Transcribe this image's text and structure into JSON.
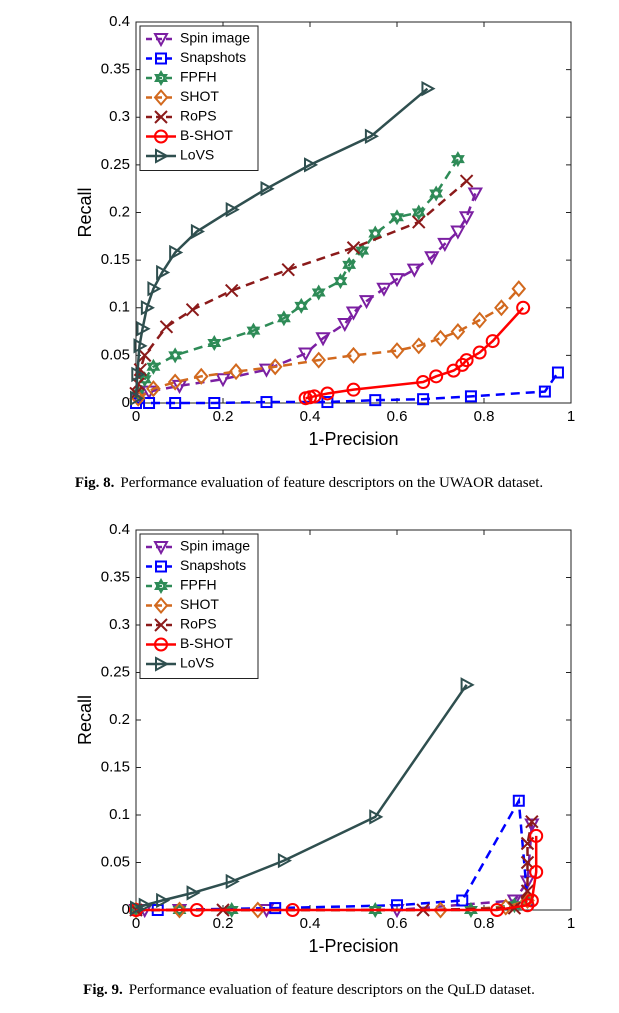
{
  "chart_data": [
    {
      "type": "line",
      "xlabel": "1-Precision",
      "ylabel": "Recall",
      "xlim": [
        0,
        1
      ],
      "ylim": [
        0,
        0.4
      ],
      "xticks": [
        0,
        0.2,
        0.4,
        0.6,
        0.8,
        1
      ],
      "yticks": [
        0,
        0.05,
        0.1,
        0.15,
        0.2,
        0.25,
        0.3,
        0.35,
        0.4
      ],
      "legend": "upper-left",
      "caption_label": "Fig. 8.",
      "caption": "Performance evaluation of feature descriptors on the UWAOR dataset.",
      "series": [
        {
          "name": "Spin image",
          "color": "#7b1fa2",
          "marker": "triangle-down",
          "dashed": true,
          "x": [
            0.005,
            0.03,
            0.1,
            0.2,
            0.3,
            0.39,
            0.43,
            0.48,
            0.5,
            0.53,
            0.57,
            0.6,
            0.64,
            0.68,
            0.71,
            0.74,
            0.76,
            0.78
          ],
          "values": [
            0.005,
            0.012,
            0.018,
            0.025,
            0.035,
            0.052,
            0.068,
            0.083,
            0.095,
            0.107,
            0.12,
            0.13,
            0.14,
            0.153,
            0.167,
            0.18,
            0.195,
            0.22
          ]
        },
        {
          "name": "Snapshots",
          "color": "#0000ff",
          "marker": "square",
          "dashed": true,
          "x": [
            0,
            0.03,
            0.09,
            0.18,
            0.3,
            0.44,
            0.55,
            0.66,
            0.77,
            0.94,
            0.97
          ],
          "values": [
            0,
            0,
            0,
            0,
            0.001,
            0.001,
            0.003,
            0.004,
            0.007,
            0.012,
            0.032
          ]
        },
        {
          "name": "FPFH",
          "color": "#2e8b57",
          "marker": "hexagram",
          "dashed": true,
          "x": [
            0.005,
            0.02,
            0.04,
            0.09,
            0.18,
            0.27,
            0.34,
            0.38,
            0.42,
            0.47,
            0.49,
            0.52,
            0.55,
            0.6,
            0.65,
            0.69,
            0.74
          ],
          "values": [
            0.01,
            0.025,
            0.038,
            0.05,
            0.063,
            0.076,
            0.089,
            0.102,
            0.116,
            0.128,
            0.145,
            0.16,
            0.178,
            0.195,
            0.2,
            0.22,
            0.256
          ]
        },
        {
          "name": "SHOT",
          "color": "#d2691e",
          "marker": "diamond",
          "dashed": true,
          "x": [
            0.005,
            0.04,
            0.09,
            0.15,
            0.23,
            0.32,
            0.42,
            0.5,
            0.6,
            0.65,
            0.7,
            0.74,
            0.79,
            0.84,
            0.88
          ],
          "values": [
            0.005,
            0.015,
            0.022,
            0.028,
            0.033,
            0.038,
            0.045,
            0.05,
            0.055,
            0.06,
            0.068,
            0.075,
            0.087,
            0.1,
            0.12
          ]
        },
        {
          "name": "RoPS",
          "color": "#8b1a1a",
          "marker": "x",
          "dashed": true,
          "x": [
            0,
            0.005,
            0.01,
            0.02,
            0.07,
            0.13,
            0.22,
            0.35,
            0.5,
            0.65,
            0.76
          ],
          "values": [
            0.01,
            0.02,
            0.035,
            0.05,
            0.08,
            0.098,
            0.118,
            0.14,
            0.163,
            0.19,
            0.233
          ]
        },
        {
          "name": "B-SHOT",
          "color": "#ff0000",
          "marker": "circle",
          "dashed": false,
          "x": [
            0.39,
            0.4,
            0.41,
            0.44,
            0.5,
            0.66,
            0.69,
            0.73,
            0.75,
            0.76,
            0.79,
            0.82,
            0.89
          ],
          "values": [
            0.005,
            0.006,
            0.007,
            0.01,
            0.014,
            0.022,
            0.028,
            0.034,
            0.04,
            0.045,
            0.053,
            0.065,
            0.1
          ]
        },
        {
          "name": "LoVS",
          "color": "#2f4f4f",
          "marker": "triangle-right",
          "dashed": false,
          "x": [
            0,
            0.003,
            0.008,
            0.015,
            0.025,
            0.04,
            0.06,
            0.09,
            0.14,
            0.22,
            0.3,
            0.4,
            0.54,
            0.67
          ],
          "values": [
            0.005,
            0.03,
            0.06,
            0.078,
            0.1,
            0.12,
            0.137,
            0.158,
            0.18,
            0.203,
            0.225,
            0.25,
            0.28,
            0.33
          ]
        }
      ]
    },
    {
      "type": "line",
      "xlabel": "1-Precision",
      "ylabel": "Recall",
      "xlim": [
        0,
        1
      ],
      "ylim": [
        0,
        0.4
      ],
      "xticks": [
        0,
        0.2,
        0.4,
        0.6,
        0.8,
        1
      ],
      "yticks": [
        0,
        0.05,
        0.1,
        0.15,
        0.2,
        0.25,
        0.3,
        0.35,
        0.4
      ],
      "legend": "upper-left",
      "caption_label": "Fig. 9.",
      "caption": "Performance evaluation of feature descriptors on the QuLD dataset.",
      "series": [
        {
          "name": "Spin image",
          "color": "#7b1fa2",
          "marker": "triangle-down",
          "dashed": true,
          "x": [
            0,
            0.02,
            0.1,
            0.3,
            0.6,
            0.87,
            0.9,
            0.91
          ],
          "values": [
            0,
            0,
            0,
            0,
            0,
            0.01,
            0.03,
            0.09
          ]
        },
        {
          "name": "Snapshots",
          "color": "#0000ff",
          "marker": "square",
          "dashed": true,
          "x": [
            0,
            0.05,
            0.32,
            0.6,
            0.75,
            0.88,
            0.9
          ],
          "values": [
            0,
            0,
            0.002,
            0.005,
            0.01,
            0.115,
            0.01
          ]
        },
        {
          "name": "FPFH",
          "color": "#2e8b57",
          "marker": "hexagram",
          "dashed": true,
          "x": [
            0,
            0.1,
            0.22,
            0.55,
            0.77,
            0.87,
            0.9
          ],
          "values": [
            0,
            0,
            0,
            0,
            0,
            0.005,
            0.01
          ]
        },
        {
          "name": "SHOT",
          "color": "#d2691e",
          "marker": "diamond",
          "dashed": true,
          "x": [
            0,
            0.1,
            0.28,
            0.7,
            0.85,
            0.9
          ],
          "values": [
            0,
            0,
            0,
            0,
            0.003,
            0.01
          ]
        },
        {
          "name": "RoPS",
          "color": "#8b1a1a",
          "marker": "x",
          "dashed": true,
          "x": [
            0,
            0.2,
            0.66,
            0.87,
            0.9,
            0.9,
            0.9,
            0.91
          ],
          "values": [
            0,
            0,
            0,
            0.002,
            0.02,
            0.05,
            0.07,
            0.093
          ]
        },
        {
          "name": "B-SHOT",
          "color": "#ff0000",
          "marker": "circle",
          "dashed": false,
          "x": [
            0,
            0.14,
            0.36,
            0.83,
            0.9,
            0.91,
            0.92,
            0.92
          ],
          "values": [
            0,
            0,
            0,
            0,
            0.005,
            0.01,
            0.04,
            0.078
          ]
        },
        {
          "name": "LoVS",
          "color": "#2f4f4f",
          "marker": "triangle-right",
          "dashed": false,
          "x": [
            0,
            0.02,
            0.06,
            0.13,
            0.22,
            0.34,
            0.55,
            0.76
          ],
          "values": [
            0.002,
            0.005,
            0.01,
            0.018,
            0.03,
            0.052,
            0.098,
            0.237
          ]
        }
      ]
    }
  ]
}
